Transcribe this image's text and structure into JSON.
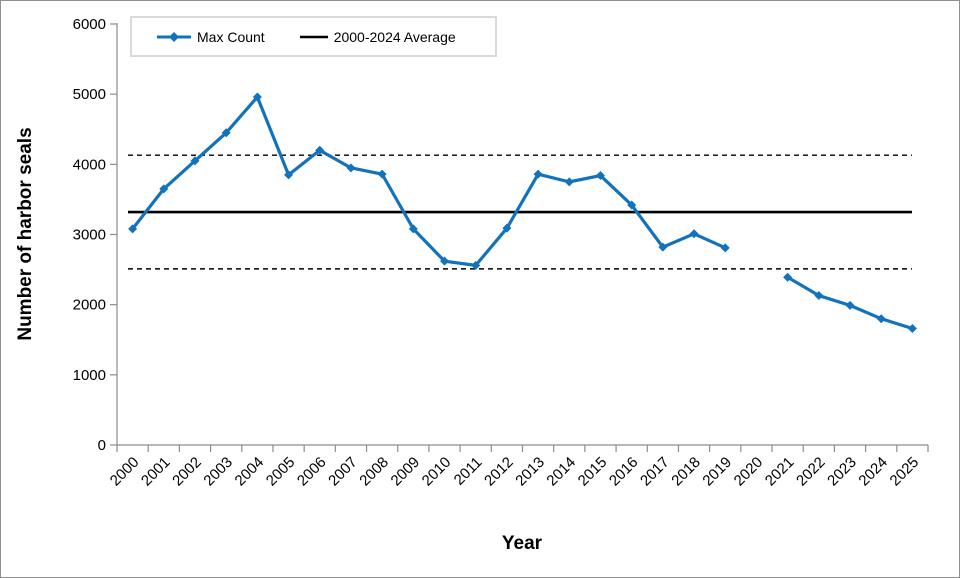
{
  "chart_data": {
    "type": "line",
    "title": "",
    "xlabel": "Year",
    "ylabel": "Number of harbor seals",
    "x": [
      2000,
      2001,
      2002,
      2003,
      2004,
      2005,
      2006,
      2007,
      2008,
      2009,
      2010,
      2011,
      2012,
      2013,
      2014,
      2015,
      2016,
      2017,
      2018,
      2019,
      2020,
      2021,
      2022,
      2023,
      2024,
      2025
    ],
    "series": [
      {
        "name": "Max Count",
        "color": "#1272BC",
        "marker": "diamond",
        "values": [
          3080,
          3650,
          4050,
          4450,
          4960,
          3850,
          4200,
          3950,
          3860,
          3080,
          2620,
          2560,
          3090,
          3860,
          3750,
          3840,
          3420,
          2820,
          3010,
          2810,
          null,
          2390,
          2130,
          1990,
          1800,
          1660
        ]
      },
      {
        "name": "2000-2024 Average",
        "color": "#000000",
        "style": "solid",
        "value": 3320
      }
    ],
    "bands": {
      "upper": 4130,
      "lower": 2510,
      "style": "dashed",
      "color": "#000000"
    },
    "ylim": [
      0,
      6000
    ],
    "yticks": [
      0,
      1000,
      2000,
      3000,
      4000,
      5000,
      6000
    ],
    "grid": false,
    "legend_position": "top-left",
    "axis_color": "#8C8C8C",
    "tick_label_color": "#000000",
    "note_missing_year": "2020"
  }
}
